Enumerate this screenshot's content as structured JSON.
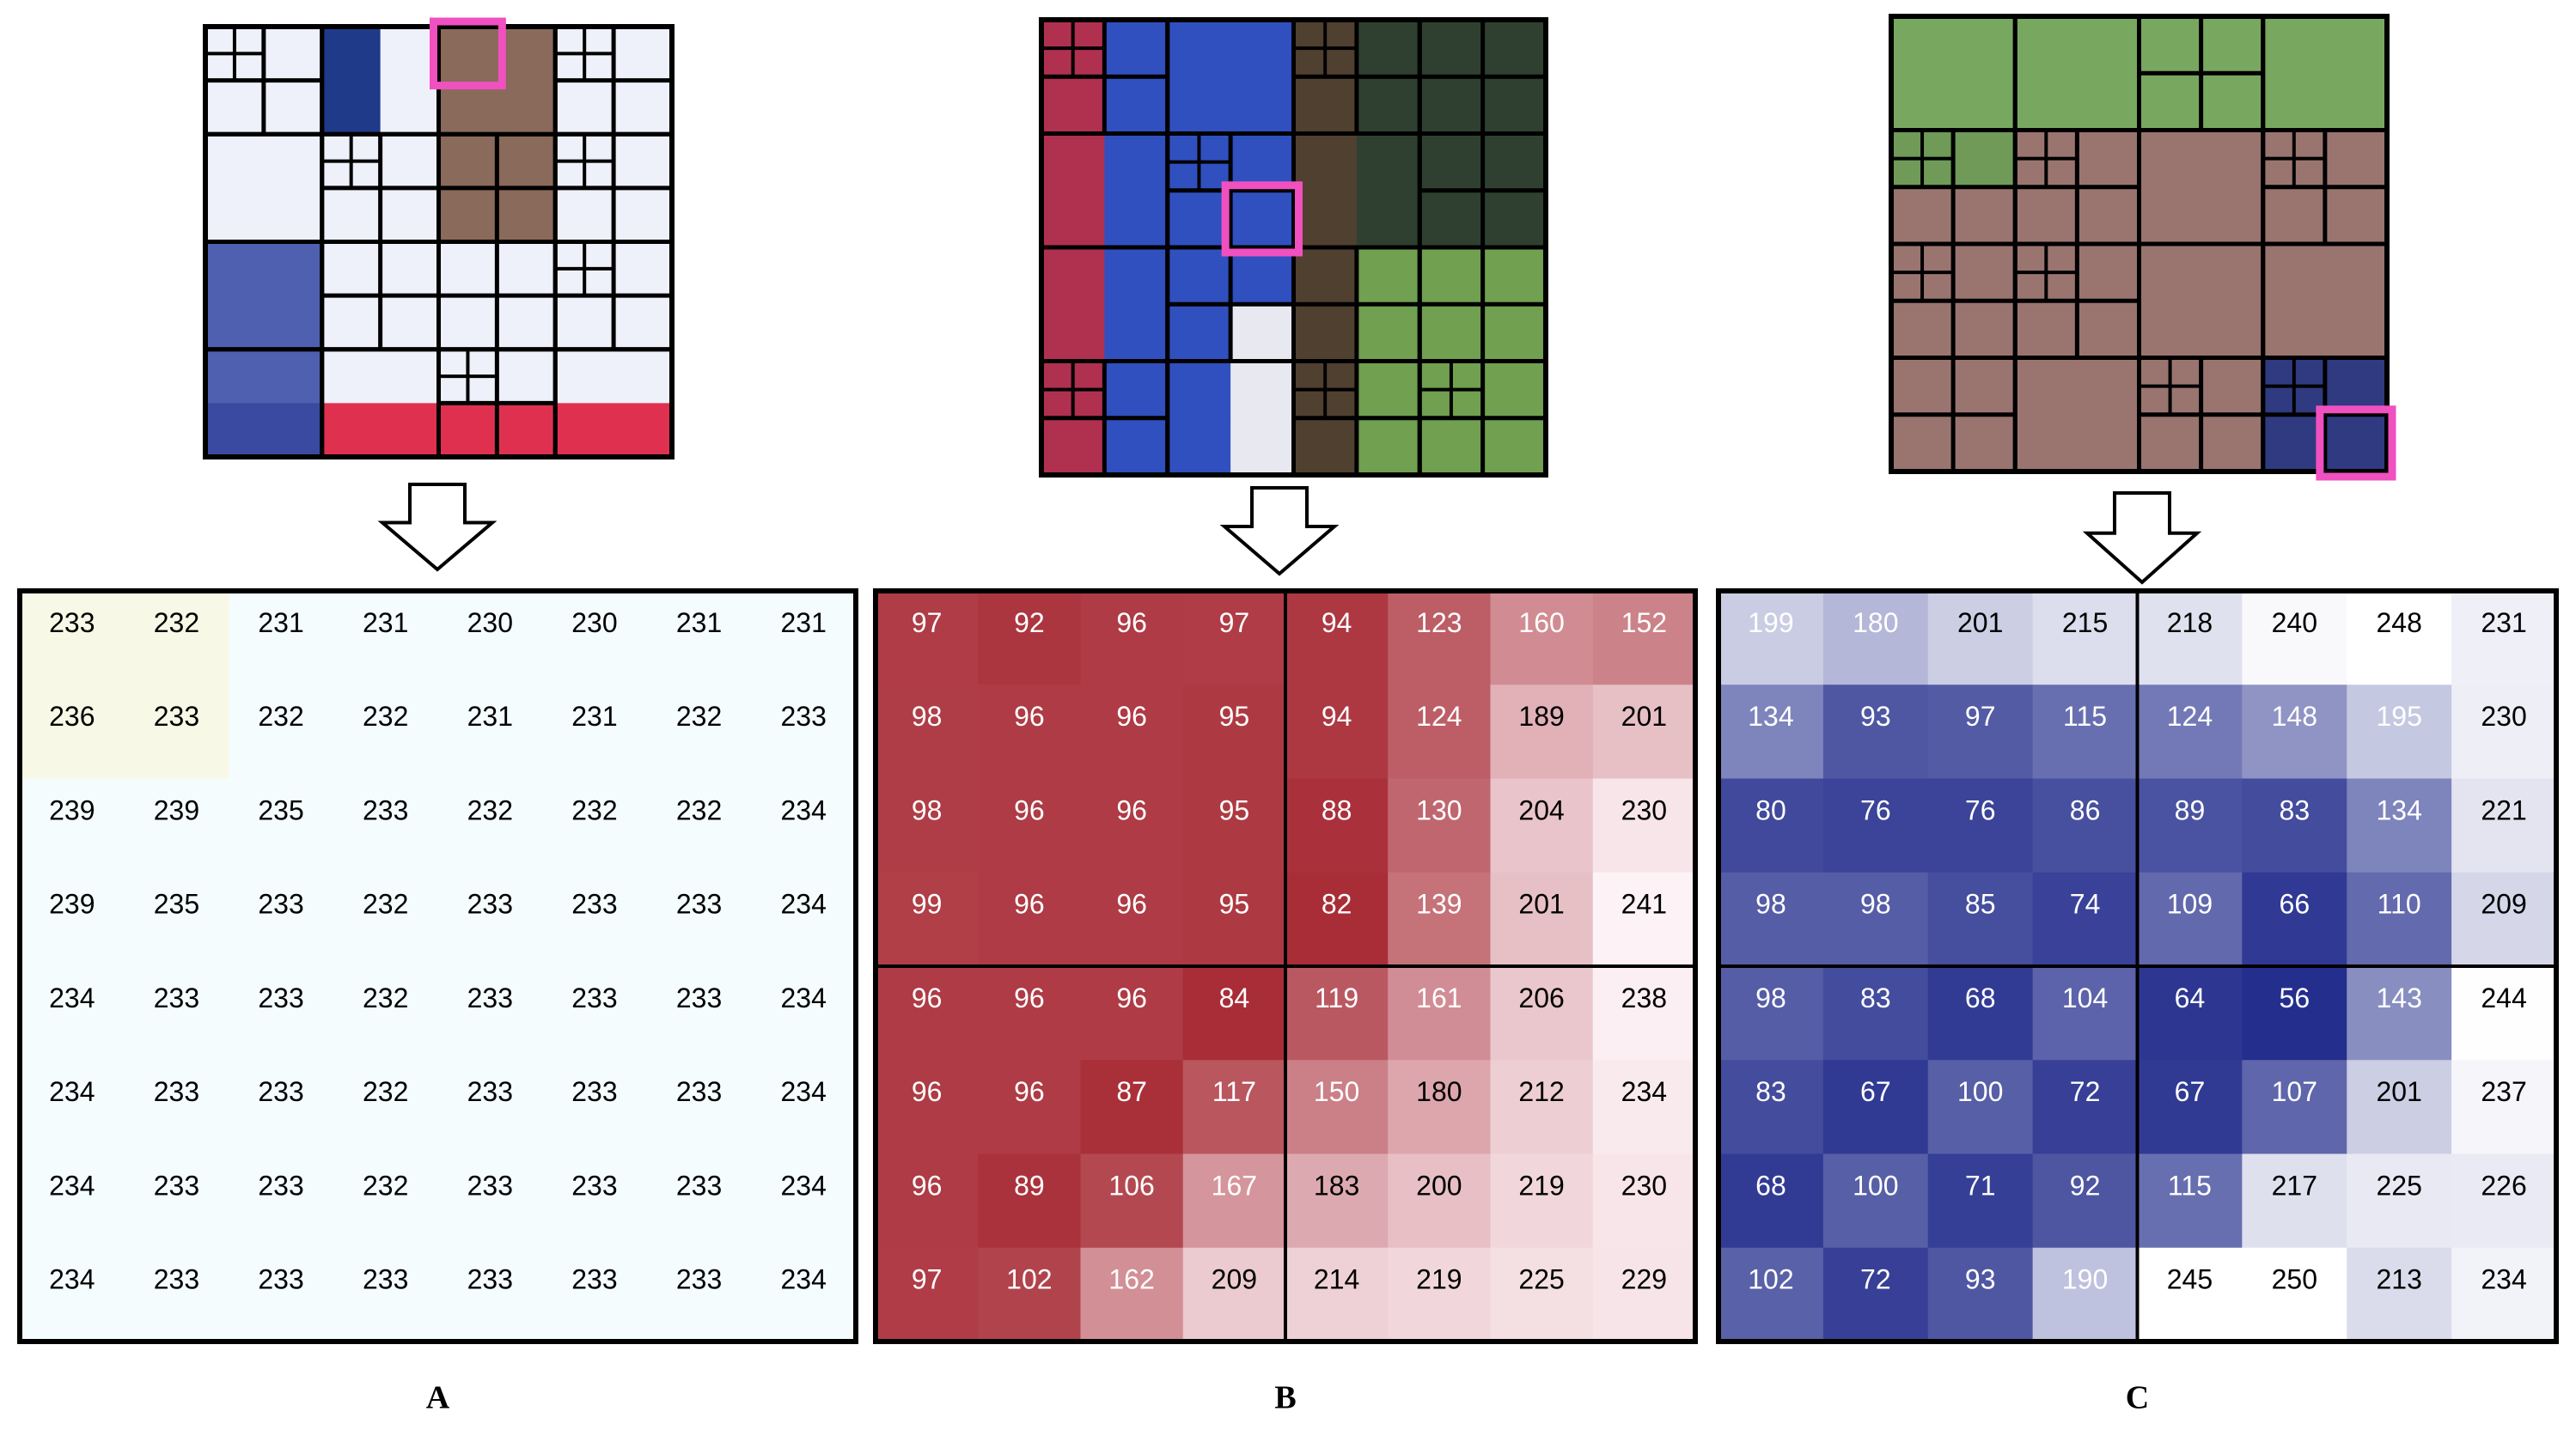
{
  "panels": [
    {
      "label": "A",
      "matrix": [
        [
          233,
          232,
          231,
          231,
          230,
          230,
          231,
          231
        ],
        [
          236,
          233,
          232,
          232,
          231,
          231,
          232,
          233
        ],
        [
          239,
          239,
          235,
          233,
          232,
          232,
          232,
          234
        ],
        [
          239,
          235,
          233,
          232,
          233,
          233,
          233,
          234
        ],
        [
          234,
          233,
          233,
          232,
          233,
          233,
          233,
          234
        ],
        [
          234,
          233,
          233,
          232,
          233,
          233,
          233,
          234
        ],
        [
          234,
          233,
          233,
          232,
          233,
          233,
          233,
          234
        ],
        [
          234,
          233,
          233,
          233,
          233,
          233,
          233,
          234
        ]
      ]
    },
    {
      "label": "B",
      "matrix": [
        [
          97,
          92,
          96,
          97,
          94,
          123,
          160,
          152
        ],
        [
          98,
          96,
          96,
          95,
          94,
          124,
          189,
          201
        ],
        [
          98,
          96,
          96,
          95,
          88,
          130,
          204,
          230
        ],
        [
          99,
          96,
          96,
          95,
          82,
          139,
          201,
          241
        ],
        [
          96,
          96,
          96,
          84,
          119,
          161,
          206,
          238
        ],
        [
          96,
          96,
          87,
          117,
          150,
          180,
          212,
          234
        ],
        [
          96,
          89,
          106,
          167,
          183,
          200,
          219,
          230
        ],
        [
          97,
          102,
          162,
          209,
          214,
          219,
          225,
          229
        ]
      ]
    },
    {
      "label": "C",
      "matrix": [
        [
          199,
          180,
          201,
          215,
          218,
          240,
          248,
          231
        ],
        [
          134,
          93,
          97,
          115,
          124,
          148,
          195,
          230
        ],
        [
          80,
          76,
          76,
          86,
          89,
          83,
          134,
          221
        ],
        [
          98,
          98,
          85,
          74,
          109,
          66,
          110,
          209
        ],
        [
          98,
          83,
          68,
          104,
          64,
          56,
          143,
          244
        ],
        [
          83,
          67,
          100,
          72,
          67,
          107,
          201,
          237
        ],
        [
          68,
          100,
          71,
          92,
          115,
          217,
          225,
          226
        ],
        [
          102,
          72,
          93,
          190,
          245,
          250,
          213,
          234
        ]
      ]
    }
  ]
}
